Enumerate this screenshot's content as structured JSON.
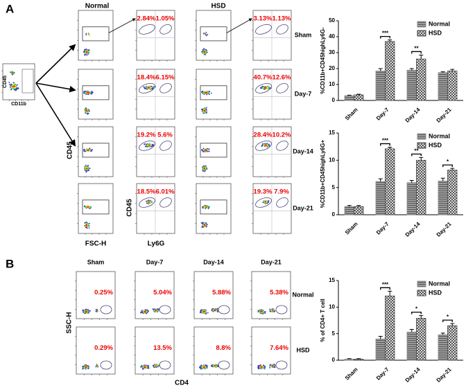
{
  "chart_data": [
    {
      "type": "bar",
      "ylabel": "%CD11b+CD45highLy6G-",
      "categories": [
        "Sham",
        "Day-7",
        "Day-14",
        "Day-21"
      ],
      "series": [
        {
          "name": "Normal",
          "color": "#8a8a8a",
          "values": [
            3,
            18.5,
            19,
            17.5
          ],
          "errors": [
            0.3,
            1.5,
            1,
            0.5
          ]
        },
        {
          "name": "HSD",
          "color": "#444444",
          "values": [
            3.5,
            37,
            26,
            18.5
          ],
          "errors": [
            0.4,
            1,
            2.5,
            1
          ]
        }
      ],
      "significance": [
        null,
        "***",
        "**",
        null
      ],
      "ylim": [
        0,
        50
      ],
      "yticks": [
        0,
        10,
        20,
        30,
        40,
        50
      ],
      "legend": "upper right"
    },
    {
      "type": "bar",
      "ylabel": "%CD11b+CD45highLy6G+",
      "categories": [
        "Sham",
        "Day-7",
        "Day-14",
        "Day-21"
      ],
      "series": [
        {
          "name": "Normal",
          "color": "#8a8a8a",
          "values": [
            1.5,
            6.1,
            5.9,
            6.2
          ],
          "errors": [
            0.2,
            0.5,
            0.4,
            0.5
          ]
        },
        {
          "name": "HSD",
          "color": "#444444",
          "values": [
            1.5,
            12.1,
            10,
            8.2
          ],
          "errors": [
            0.2,
            0.3,
            0.5,
            0.3
          ]
        }
      ],
      "significance": [
        null,
        "***",
        "**",
        "*"
      ],
      "ylim": [
        0,
        15
      ],
      "yticks": [
        0,
        5,
        10,
        15
      ],
      "legend": "upper right"
    },
    {
      "type": "bar",
      "ylabel": "% of CD4+ T cell",
      "categories": [
        "Sham",
        "Day-7",
        "Day-14",
        "Day-21"
      ],
      "series": [
        {
          "name": "Normal",
          "color": "#8a8a8a",
          "values": [
            0.2,
            4.0,
            5.3,
            4.8
          ],
          "errors": [
            0.1,
            0.5,
            0.5,
            0.3
          ]
        },
        {
          "name": "HSD",
          "color": "#444444",
          "values": [
            0.2,
            12.1,
            7.9,
            6.5
          ],
          "errors": [
            0.1,
            0.9,
            0.5,
            0.4
          ]
        }
      ],
      "significance": [
        null,
        "***",
        "*",
        "*"
      ],
      "ylim": [
        0,
        15
      ],
      "yticks": [
        0,
        5,
        10,
        15
      ],
      "legend": "upper right"
    }
  ],
  "figure": {
    "panels": [
      "A",
      "B"
    ],
    "a": {
      "columns": [
        "Normal",
        "HSD"
      ],
      "rows": [
        "Sham",
        "Day-7",
        "Day-14",
        "Day-21"
      ],
      "percents": [
        [
          [
            "2.84%",
            "1.05%"
          ],
          [
            "3.13%",
            "1.13%"
          ]
        ],
        [
          [
            "18.4%",
            "6.15%"
          ],
          [
            "40.7%",
            "12.6%"
          ]
        ],
        [
          [
            "19.2%",
            "5.6%"
          ],
          [
            "28.4%",
            "10.2%"
          ]
        ],
        [
          [
            "18.5%",
            "6.01%"
          ],
          [
            "19.3%",
            "7.9%"
          ]
        ]
      ],
      "gate_y": "CD45",
      "gate_x": "CD11b",
      "y1": "CD45",
      "x1": "FSC-H",
      "y2": "CD45",
      "x2": "Ly6G"
    },
    "b": {
      "columns": [
        "Sham",
        "Day-7",
        "Day-14",
        "Day-21"
      ],
      "rows": [
        "Normal",
        "HSD"
      ],
      "percents": [
        [
          "0.25%",
          "5.04%",
          "5.88%",
          "5.38%"
        ],
        [
          "0.29%",
          "13.5%",
          "8.8%",
          "7.64%"
        ]
      ],
      "y": "SSC-H",
      "x": "CD4"
    }
  }
}
